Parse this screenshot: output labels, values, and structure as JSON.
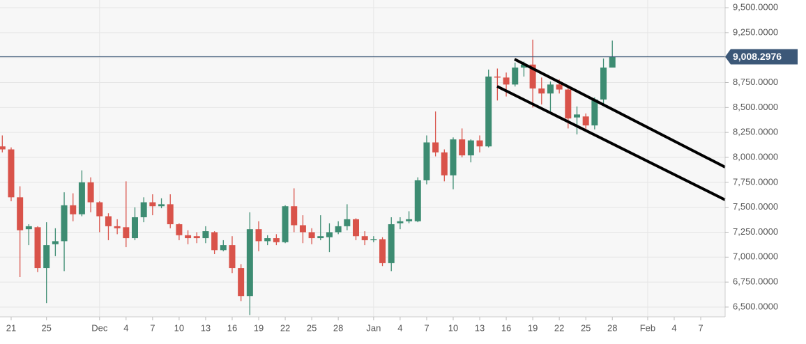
{
  "chart_data": {
    "type": "candlestick",
    "categories": [
      null,
      "21",
      null,
      null,
      null,
      "25",
      null,
      null,
      null,
      null,
      null,
      "Dec",
      null,
      null,
      "4",
      null,
      null,
      "7",
      null,
      null,
      "10",
      null,
      null,
      "13",
      null,
      null,
      "16",
      null,
      null,
      "19",
      null,
      null,
      "22",
      null,
      null,
      "25",
      null,
      null,
      "28",
      null,
      null,
      null,
      "Jan",
      null,
      null,
      "4",
      null,
      null,
      "7",
      null,
      null,
      "10",
      null,
      null,
      "13",
      null,
      null,
      "16",
      null,
      null,
      "19",
      null,
      null,
      "22",
      null,
      null,
      "25",
      null,
      null,
      "28",
      null,
      null,
      null,
      "Feb",
      null,
      null,
      "4",
      null,
      null,
      "7",
      null,
      null
    ],
    "open": [
      8110,
      8080,
      7600,
      7280,
      7300,
      6890,
      7130,
      7160,
      7520,
      7430,
      7750,
      7550,
      7410,
      7310,
      7300,
      7190,
      7400,
      7550,
      7510,
      7530,
      7330,
      7220,
      7210,
      7190,
      7250,
      7070,
      7120,
      6890,
      6610,
      7280,
      7160,
      7190,
      7150,
      7510,
      7320,
      7250,
      7190,
      7200,
      7250,
      7310,
      7380,
      7210,
      7170,
      7180,
      6940,
      7340,
      7360,
      7360,
      7770,
      8150,
      8050,
      7820,
      8180,
      8020,
      8170,
      8110,
      8810,
      8800,
      8730,
      8900,
      8930,
      8690,
      8640,
      8730,
      8680,
      8400,
      8410,
      8320,
      8580,
      8900,
      null,
      null,
      null,
      null,
      null,
      null,
      null,
      null,
      null,
      null,
      null,
      null
    ],
    "high": [
      8220,
      8100,
      7710,
      7330,
      7310,
      7350,
      7290,
      7650,
      7640,
      7870,
      7800,
      7560,
      7440,
      7380,
      7760,
      7500,
      7600,
      7630,
      7590,
      7630,
      7340,
      7270,
      7250,
      7310,
      7260,
      7170,
      7210,
      6930,
      7450,
      7360,
      7220,
      7230,
      7520,
      7690,
      7420,
      7290,
      7420,
      7340,
      7360,
      7530,
      7390,
      7260,
      7210,
      7200,
      7400,
      7400,
      7460,
      7800,
      8220,
      8460,
      8080,
      8200,
      8290,
      8180,
      8220,
      8880,
      8890,
      8850,
      8950,
      8960,
      9180,
      8800,
      8760,
      8780,
      8710,
      8510,
      8440,
      8600,
      8990,
      9170,
      null,
      null,
      null,
      null,
      null,
      null,
      null,
      null,
      null,
      null,
      null,
      null
    ],
    "low": [
      8050,
      7560,
      6800,
      7120,
      6850,
      6540,
      7010,
      6860,
      7360,
      7410,
      7450,
      7250,
      7170,
      7230,
      7100,
      7170,
      7350,
      7420,
      7490,
      7290,
      7170,
      7130,
      7140,
      7140,
      7030,
      7060,
      6840,
      6560,
      6420,
      7060,
      7120,
      7120,
      7140,
      7250,
      7140,
      7130,
      7170,
      7050,
      7230,
      7270,
      7170,
      7120,
      7150,
      6910,
      6860,
      7280,
      7340,
      7350,
      7730,
      8010,
      7760,
      7680,
      8000,
      7950,
      8050,
      8100,
      8570,
      8610,
      8710,
      8810,
      8500,
      8530,
      8460,
      8640,
      8290,
      8230,
      8280,
      8280,
      8540,
      8900,
      null,
      null,
      null,
      null,
      null,
      null,
      null,
      null,
      null,
      null,
      null,
      null
    ],
    "close": [
      8080,
      7600,
      7270,
      7310,
      6890,
      7120,
      7160,
      7520,
      7430,
      7750,
      7550,
      7410,
      7310,
      7290,
      7190,
      7400,
      7550,
      7510,
      7530,
      7330,
      7220,
      7190,
      7190,
      7260,
      7070,
      7120,
      6890,
      6610,
      7280,
      7160,
      7190,
      7150,
      7510,
      7320,
      7250,
      7190,
      7210,
      7250,
      7310,
      7380,
      7210,
      7170,
      7180,
      6940,
      7330,
      7360,
      7380,
      7770,
      8150,
      8050,
      7820,
      8180,
      8020,
      8170,
      8110,
      8810,
      8800,
      8730,
      8900,
      8930,
      8690,
      8640,
      8730,
      8680,
      8390,
      8430,
      8320,
      8580,
      8900,
      9008,
      null,
      null,
      null,
      null,
      null,
      null,
      null,
      null,
      null,
      null,
      null,
      null
    ],
    "up_color": "#3d8c72",
    "down_color": "#d9534a",
    "last_price": {
      "value": 9008.2976,
      "label": "9,008.2976"
    },
    "last_price_color": "#3c5878",
    "ylim": [
      6402,
      9577
    ],
    "yticks": [
      {
        "value": 6500,
        "label": "6,500.0000"
      },
      {
        "value": 6750,
        "label": "6,750.0000"
      },
      {
        "value": 7000,
        "label": "7,000.0000"
      },
      {
        "value": 7250,
        "label": "7,250.0000"
      },
      {
        "value": 7500,
        "label": "7,500.0000"
      },
      {
        "value": 7750,
        "label": "7,750.0000"
      },
      {
        "value": 8000,
        "label": "8,000.0000"
      },
      {
        "value": 8250,
        "label": "8,250.0000"
      },
      {
        "value": 8500,
        "label": "8,500.0000"
      },
      {
        "value": 8750,
        "label": "8,750.0000"
      },
      {
        "value": 9000,
        "label": "9,000.0000"
      },
      {
        "value": 9250,
        "label": "9,250.0000"
      },
      {
        "value": 9500,
        "label": "9,500.0000"
      }
    ],
    "grid": true
  }
}
